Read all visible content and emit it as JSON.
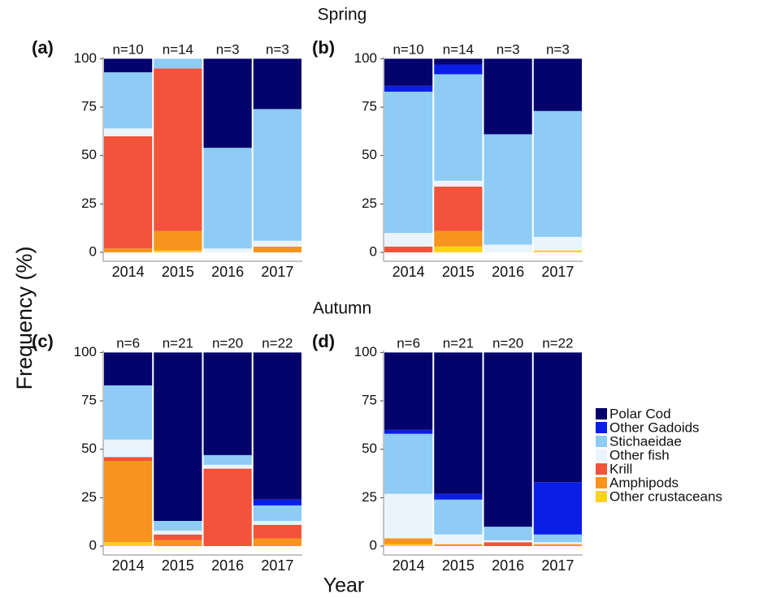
{
  "figure": {
    "row_titles": [
      "Spring",
      "Autumn"
    ],
    "xlabel": "Year",
    "ylabel": "Frequency (%)"
  },
  "chart_data": [
    {
      "type": "bar",
      "stacked": true,
      "panel": "(a)",
      "categories": [
        "2014",
        "2015",
        "2016",
        "2017"
      ],
      "bar_labels": [
        "n=10",
        "n=14",
        "n=3",
        "n=3"
      ],
      "ylim": [
        -4.6,
        101
      ],
      "yticks": [
        0,
        25,
        50,
        75,
        100
      ],
      "series": [
        {
          "name": "Other crustaceans",
          "color": "#fdd21a",
          "values": [
            0,
            1,
            0,
            0
          ]
        },
        {
          "name": "Amphipods",
          "color": "#f7941d",
          "values": [
            2,
            10,
            0,
            3
          ]
        },
        {
          "name": "Krill",
          "color": "#f2533a",
          "values": [
            58,
            84,
            0,
            0
          ]
        },
        {
          "name": "Other fish",
          "color": "#eaf4fd",
          "values": [
            4,
            0,
            2,
            3
          ]
        },
        {
          "name": "Stichaeidae",
          "color": "#8ecbf5",
          "values": [
            29,
            5,
            52,
            68
          ]
        },
        {
          "name": "Other Gadoids",
          "color": "#0a1ee6",
          "values": [
            0,
            0,
            0,
            0
          ]
        },
        {
          "name": "Polar Cod",
          "color": "#03036b",
          "values": [
            7,
            0,
            46,
            26
          ]
        }
      ]
    },
    {
      "type": "bar",
      "stacked": true,
      "panel": "(b)",
      "categories": [
        "2014",
        "2015",
        "2016",
        "2017"
      ],
      "bar_labels": [
        "n=10",
        "n=14",
        "n=3",
        "n=3"
      ],
      "ylim": [
        -4.6,
        101
      ],
      "yticks": [
        0,
        25,
        50,
        75,
        100
      ],
      "series": [
        {
          "name": "Other crustaceans",
          "color": "#fdd21a",
          "values": [
            0,
            3,
            0,
            1
          ]
        },
        {
          "name": "Amphipods",
          "color": "#f7941d",
          "values": [
            0,
            8,
            0,
            0
          ]
        },
        {
          "name": "Krill",
          "color": "#f2533a",
          "values": [
            3,
            23,
            0,
            0
          ]
        },
        {
          "name": "Other fish",
          "color": "#eaf4fd",
          "values": [
            7,
            3,
            4,
            7
          ]
        },
        {
          "name": "Stichaeidae",
          "color": "#8ecbf5",
          "values": [
            73,
            55,
            57,
            65
          ]
        },
        {
          "name": "Other Gadoids",
          "color": "#0a1ee6",
          "values": [
            3,
            5,
            0,
            0
          ]
        },
        {
          "name": "Polar Cod",
          "color": "#03036b",
          "values": [
            14,
            3,
            39,
            27
          ]
        }
      ]
    },
    {
      "type": "bar",
      "stacked": true,
      "panel": "(c)",
      "categories": [
        "2014",
        "2015",
        "2016",
        "2017"
      ],
      "bar_labels": [
        "n=6",
        "n=21",
        "n=20",
        "n=22"
      ],
      "ylim": [
        -4.6,
        101
      ],
      "yticks": [
        0,
        25,
        50,
        75,
        100
      ],
      "series": [
        {
          "name": "Other crustaceans",
          "color": "#fdd21a",
          "values": [
            2,
            0,
            0,
            0
          ]
        },
        {
          "name": "Amphipods",
          "color": "#f7941d",
          "values": [
            42,
            3,
            0,
            4
          ]
        },
        {
          "name": "Krill",
          "color": "#f2533a",
          "values": [
            2,
            3,
            40,
            7
          ]
        },
        {
          "name": "Other fish",
          "color": "#eaf4fd",
          "values": [
            9,
            2,
            2,
            2
          ]
        },
        {
          "name": "Stichaeidae",
          "color": "#8ecbf5",
          "values": [
            28,
            5,
            5,
            8
          ]
        },
        {
          "name": "Other Gadoids",
          "color": "#0a1ee6",
          "values": [
            0,
            0,
            0,
            3
          ]
        },
        {
          "name": "Polar Cod",
          "color": "#03036b",
          "values": [
            17,
            87,
            53,
            76
          ]
        }
      ]
    },
    {
      "type": "bar",
      "stacked": true,
      "panel": "(d)",
      "categories": [
        "2014",
        "2015",
        "2016",
        "2017"
      ],
      "bar_labels": [
        "n=6",
        "n=21",
        "n=20",
        "n=22"
      ],
      "ylim": [
        -4.6,
        101
      ],
      "yticks": [
        0,
        25,
        50,
        75,
        100
      ],
      "legend": "right",
      "series": [
        {
          "name": "Other crustaceans",
          "color": "#fdd21a",
          "values": [
            1,
            0,
            0,
            0
          ]
        },
        {
          "name": "Amphipods",
          "color": "#f7941d",
          "values": [
            3,
            1,
            0,
            1
          ]
        },
        {
          "name": "Krill",
          "color": "#f2533a",
          "values": [
            0,
            0,
            2,
            0
          ]
        },
        {
          "name": "Other fish",
          "color": "#eaf4fd",
          "values": [
            23,
            5,
            1,
            1
          ]
        },
        {
          "name": "Stichaeidae",
          "color": "#8ecbf5",
          "values": [
            31,
            18,
            7,
            4
          ]
        },
        {
          "name": "Other Gadoids",
          "color": "#0a1ee6",
          "values": [
            2,
            3,
            0,
            27
          ]
        },
        {
          "name": "Polar Cod",
          "color": "#03036b",
          "values": [
            40,
            73,
            90,
            67
          ]
        }
      ]
    }
  ]
}
